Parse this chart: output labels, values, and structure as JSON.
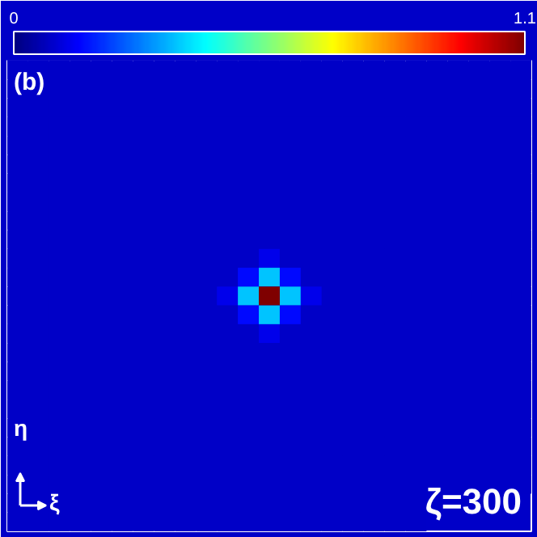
{
  "chart_data": {
    "type": "heatmap",
    "categories": [
      null,
      null,
      null,
      null,
      null,
      null,
      null,
      null,
      null,
      null,
      null,
      null,
      null,
      null,
      null,
      null,
      null,
      null,
      null,
      null,
      null,
      null,
      null,
      null,
      null
    ],
    "y_categories": [
      null,
      null,
      null,
      null,
      null,
      null,
      null,
      null,
      null,
      null,
      null,
      null,
      null,
      null,
      null,
      null,
      null,
      null,
      null,
      null,
      null,
      null,
      null,
      null,
      null
    ],
    "cells": [
      [
        0.08,
        0.08,
        0.08,
        0.08,
        0.08,
        0.08,
        0.08,
        0.08,
        0.08,
        0.08,
        0.08,
        0.08,
        0.08,
        0.08,
        0.08,
        0.08,
        0.08,
        0.08,
        0.08,
        0.08,
        0.08,
        0.08,
        0.08,
        0.08,
        0.08
      ],
      [
        0.08,
        0.08,
        0.08,
        0.08,
        0.08,
        0.08,
        0.08,
        0.08,
        0.08,
        0.08,
        0.08,
        0.08,
        0.08,
        0.08,
        0.08,
        0.08,
        0.08,
        0.08,
        0.08,
        0.08,
        0.08,
        0.08,
        0.08,
        0.08,
        0.08
      ],
      [
        0.08,
        0.08,
        0.08,
        0.08,
        0.08,
        0.08,
        0.08,
        0.08,
        0.08,
        0.08,
        0.08,
        0.08,
        0.08,
        0.08,
        0.08,
        0.08,
        0.08,
        0.08,
        0.08,
        0.08,
        0.08,
        0.08,
        0.08,
        0.08,
        0.08
      ],
      [
        0.08,
        0.08,
        0.08,
        0.08,
        0.08,
        0.08,
        0.08,
        0.08,
        0.08,
        0.08,
        0.08,
        0.08,
        0.08,
        0.08,
        0.08,
        0.08,
        0.08,
        0.08,
        0.08,
        0.08,
        0.08,
        0.08,
        0.08,
        0.08,
        0.08
      ],
      [
        0.08,
        0.08,
        0.08,
        0.08,
        0.08,
        0.08,
        0.08,
        0.08,
        0.08,
        0.08,
        0.08,
        0.08,
        0.08,
        0.08,
        0.08,
        0.08,
        0.08,
        0.08,
        0.08,
        0.08,
        0.08,
        0.08,
        0.08,
        0.08,
        0.08
      ],
      [
        0.08,
        0.08,
        0.08,
        0.08,
        0.08,
        0.08,
        0.08,
        0.08,
        0.08,
        0.08,
        0.08,
        0.08,
        0.08,
        0.08,
        0.08,
        0.08,
        0.08,
        0.08,
        0.08,
        0.08,
        0.08,
        0.08,
        0.08,
        0.08,
        0.08
      ],
      [
        0.08,
        0.08,
        0.08,
        0.08,
        0.08,
        0.08,
        0.08,
        0.08,
        0.08,
        0.08,
        0.08,
        0.08,
        0.08,
        0.08,
        0.08,
        0.08,
        0.08,
        0.08,
        0.08,
        0.08,
        0.08,
        0.08,
        0.08,
        0.08,
        0.08
      ],
      [
        0.08,
        0.08,
        0.08,
        0.08,
        0.08,
        0.08,
        0.08,
        0.08,
        0.08,
        0.08,
        0.08,
        0.08,
        0.08,
        0.08,
        0.08,
        0.08,
        0.08,
        0.08,
        0.08,
        0.08,
        0.08,
        0.08,
        0.08,
        0.08,
        0.08
      ],
      [
        0.08,
        0.08,
        0.08,
        0.08,
        0.08,
        0.08,
        0.08,
        0.08,
        0.08,
        0.08,
        0.08,
        0.08,
        0.08,
        0.08,
        0.08,
        0.08,
        0.08,
        0.08,
        0.08,
        0.08,
        0.08,
        0.08,
        0.08,
        0.08,
        0.08
      ],
      [
        0.08,
        0.08,
        0.08,
        0.08,
        0.08,
        0.08,
        0.08,
        0.08,
        0.08,
        0.08,
        0.08,
        0.08,
        0.08,
        0.08,
        0.08,
        0.08,
        0.08,
        0.08,
        0.08,
        0.08,
        0.08,
        0.08,
        0.08,
        0.08,
        0.08
      ],
      [
        0.08,
        0.08,
        0.08,
        0.08,
        0.08,
        0.08,
        0.08,
        0.08,
        0.08,
        0.08,
        0.08,
        0.08,
        0.12,
        0.08,
        0.08,
        0.08,
        0.08,
        0.08,
        0.08,
        0.08,
        0.08,
        0.08,
        0.08,
        0.08,
        0.08
      ],
      [
        0.08,
        0.08,
        0.08,
        0.08,
        0.08,
        0.08,
        0.08,
        0.08,
        0.08,
        0.08,
        0.08,
        0.15,
        0.35,
        0.15,
        0.08,
        0.08,
        0.08,
        0.08,
        0.08,
        0.08,
        0.08,
        0.08,
        0.08,
        0.08,
        0.08
      ],
      [
        0.08,
        0.08,
        0.08,
        0.08,
        0.08,
        0.08,
        0.08,
        0.08,
        0.08,
        0.08,
        0.12,
        0.35,
        1.1,
        0.35,
        0.12,
        0.08,
        0.08,
        0.08,
        0.08,
        0.08,
        0.08,
        0.08,
        0.08,
        0.08,
        0.08
      ],
      [
        0.08,
        0.08,
        0.08,
        0.08,
        0.08,
        0.08,
        0.08,
        0.08,
        0.08,
        0.08,
        0.08,
        0.15,
        0.35,
        0.15,
        0.08,
        0.08,
        0.08,
        0.08,
        0.08,
        0.08,
        0.08,
        0.08,
        0.08,
        0.08,
        0.08
      ],
      [
        0.08,
        0.08,
        0.08,
        0.08,
        0.08,
        0.08,
        0.08,
        0.08,
        0.08,
        0.08,
        0.08,
        0.08,
        0.12,
        0.08,
        0.08,
        0.08,
        0.08,
        0.08,
        0.08,
        0.08,
        0.08,
        0.08,
        0.08,
        0.08,
        0.08
      ],
      [
        0.08,
        0.08,
        0.08,
        0.08,
        0.08,
        0.08,
        0.08,
        0.08,
        0.08,
        0.08,
        0.08,
        0.08,
        0.08,
        0.08,
        0.08,
        0.08,
        0.08,
        0.08,
        0.08,
        0.08,
        0.08,
        0.08,
        0.08,
        0.08,
        0.08
      ],
      [
        0.08,
        0.08,
        0.08,
        0.08,
        0.08,
        0.08,
        0.08,
        0.08,
        0.08,
        0.08,
        0.08,
        0.08,
        0.08,
        0.08,
        0.08,
        0.08,
        0.08,
        0.08,
        0.08,
        0.08,
        0.08,
        0.08,
        0.08,
        0.08,
        0.08
      ],
      [
        0.08,
        0.08,
        0.08,
        0.08,
        0.08,
        0.08,
        0.08,
        0.08,
        0.08,
        0.08,
        0.08,
        0.08,
        0.08,
        0.08,
        0.08,
        0.08,
        0.08,
        0.08,
        0.08,
        0.08,
        0.08,
        0.08,
        0.08,
        0.08,
        0.08
      ],
      [
        0.08,
        0.08,
        0.08,
        0.08,
        0.08,
        0.08,
        0.08,
        0.08,
        0.08,
        0.08,
        0.08,
        0.08,
        0.08,
        0.08,
        0.08,
        0.08,
        0.08,
        0.08,
        0.08,
        0.08,
        0.08,
        0.08,
        0.08,
        0.08,
        0.08
      ],
      [
        0.08,
        0.08,
        0.08,
        0.08,
        0.08,
        0.08,
        0.08,
        0.08,
        0.08,
        0.08,
        0.08,
        0.08,
        0.08,
        0.08,
        0.08,
        0.08,
        0.08,
        0.08,
        0.08,
        0.08,
        0.08,
        0.08,
        0.08,
        0.08,
        0.08
      ],
      [
        0.08,
        0.08,
        0.08,
        0.08,
        0.08,
        0.08,
        0.08,
        0.08,
        0.08,
        0.08,
        0.08,
        0.08,
        0.08,
        0.08,
        0.08,
        0.08,
        0.08,
        0.08,
        0.08,
        0.08,
        0.08,
        0.08,
        0.08,
        0.08,
        0.08
      ],
      [
        0.08,
        0.08,
        0.08,
        0.08,
        0.08,
        0.08,
        0.08,
        0.08,
        0.08,
        0.08,
        0.08,
        0.08,
        0.08,
        0.08,
        0.08,
        0.08,
        0.08,
        0.08,
        0.08,
        0.08,
        0.08,
        0.08,
        0.08,
        0.08,
        0.08
      ],
      [
        0.08,
        0.08,
        0.08,
        0.08,
        0.08,
        0.08,
        0.08,
        0.08,
        0.08,
        0.08,
        0.08,
        0.08,
        0.08,
        0.08,
        0.08,
        0.08,
        0.08,
        0.08,
        0.08,
        0.08,
        0.08,
        0.08,
        0.08,
        0.08,
        0.08
      ],
      [
        0.08,
        0.08,
        0.08,
        0.08,
        0.08,
        0.08,
        0.08,
        0.08,
        0.08,
        0.08,
        0.08,
        0.08,
        0.08,
        0.08,
        0.08,
        0.08,
        0.08,
        0.08,
        0.08,
        0.08,
        null,
        null,
        null,
        null,
        null
      ],
      [
        0.08,
        0.08,
        0.08,
        0.08,
        0.08,
        0.08,
        0.08,
        0.08,
        0.08,
        0.08,
        0.08,
        0.08,
        0.08,
        0.08,
        0.08,
        0.08,
        0.08,
        0.08,
        0.08,
        0.08,
        null,
        null,
        null,
        null,
        null
      ]
    ],
    "clim": [
      0,
      1.1
    ],
    "cticks": [
      0,
      1.1
    ],
    "annotations": [
      "(b)",
      "η",
      "ξ",
      "ζ=300"
    ]
  }
}
